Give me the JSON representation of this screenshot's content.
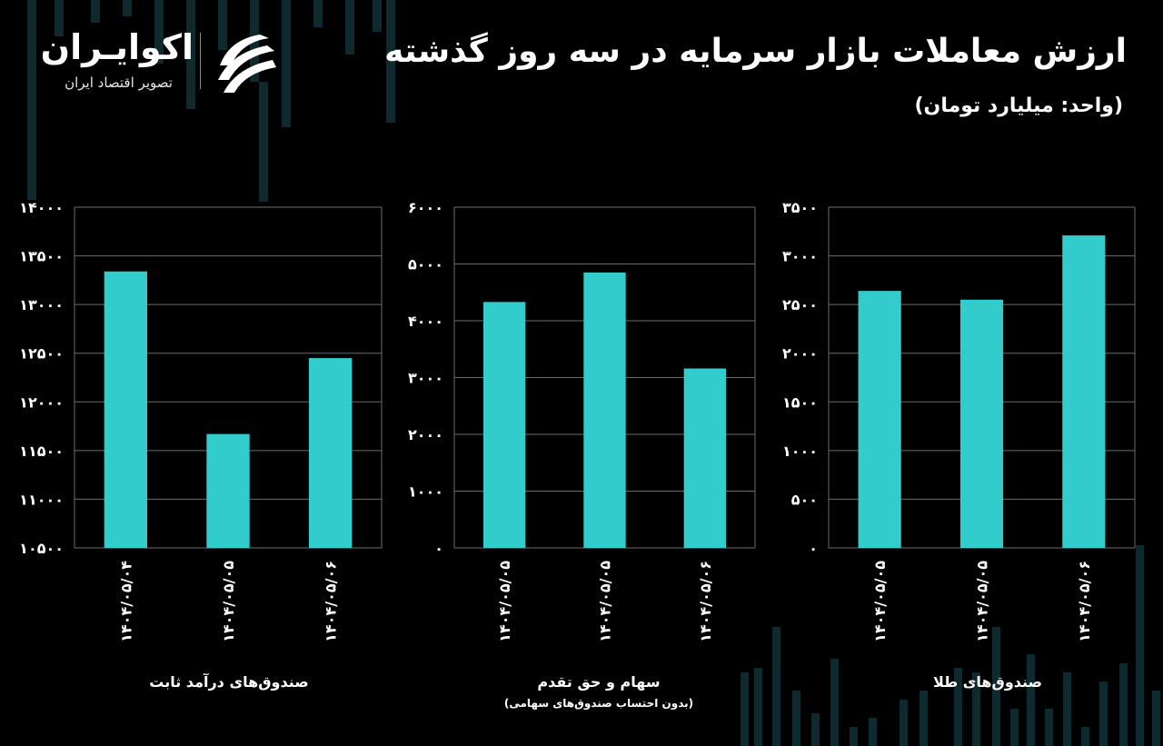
{
  "header": {
    "title": "ارزش معاملات بازار سرمایه در سه روز گذشته",
    "unit": "(واحد: میلیارد تومان)"
  },
  "logo": {
    "name": "اکوایـران",
    "tagline": "تصویر اقتصاد ایران",
    "mark_icon": "ecoiran-swirl-icon"
  },
  "colors": {
    "bar": "#33CCCC",
    "background": "#000000",
    "grid": "#6b6b6b",
    "text": "#ffffff"
  },
  "chart_data": [
    {
      "type": "bar",
      "title": "صندوق‌های درآمد ثابت",
      "subtitle": "",
      "categories": [
        "۱۴۰۴/۰۵/۰۴",
        "۱۴۰۴/۰۵/۰۵",
        "۱۴۰۴/۰۵/۰۶"
      ],
      "values": [
        13340,
        11670,
        12450
      ],
      "ylim": [
        10500,
        14000
      ],
      "yticks": [
        10500,
        11000,
        11500,
        12000,
        12500,
        13000,
        13500,
        14000
      ],
      "ytick_labels": [
        "۱۰۵۰۰",
        "۱۱۰۰۰",
        "۱۱۵۰۰",
        "۱۲۰۰۰",
        "۱۲۵۰۰",
        "۱۳۰۰۰",
        "۱۳۵۰۰",
        "۱۴۰۰۰"
      ],
      "grid": true
    },
    {
      "type": "bar",
      "title": "سهام و حق تقدم",
      "subtitle": "(بدون احتساب صندوق‌های سهامی)",
      "categories": [
        "۱۴۰۴/۰۵/۰۵",
        "۱۴۰۴/۰۵/۰۵",
        "۱۴۰۴/۰۵/۰۶"
      ],
      "values": [
        4330,
        4850,
        3160
      ],
      "ylim": [
        0,
        6000
      ],
      "yticks": [
        0,
        1000,
        2000,
        3000,
        4000,
        5000,
        6000
      ],
      "ytick_labels": [
        "۰",
        "۱۰۰۰",
        "۲۰۰۰",
        "۳۰۰۰",
        "۴۰۰۰",
        "۵۰۰۰",
        "۶۰۰۰"
      ],
      "grid": true
    },
    {
      "type": "bar",
      "title": "صندوق‌های طلا",
      "subtitle": "",
      "categories": [
        "۱۴۰۴/۰۵/۰۵",
        "۱۴۰۴/۰۵/۰۵",
        "۱۴۰۴/۰۵/۰۶"
      ],
      "values": [
        2640,
        2550,
        3210
      ],
      "ylim": [
        0,
        3500
      ],
      "yticks": [
        0,
        500,
        1000,
        1500,
        2000,
        2500,
        3000,
        3500
      ],
      "ytick_labels": [
        "۰",
        "۵۰۰",
        "۱۰۰۰",
        "۱۵۰۰",
        "۲۰۰۰",
        "۲۵۰۰",
        "۳۰۰۰",
        "۳۵۰۰"
      ],
      "grid": true
    }
  ]
}
